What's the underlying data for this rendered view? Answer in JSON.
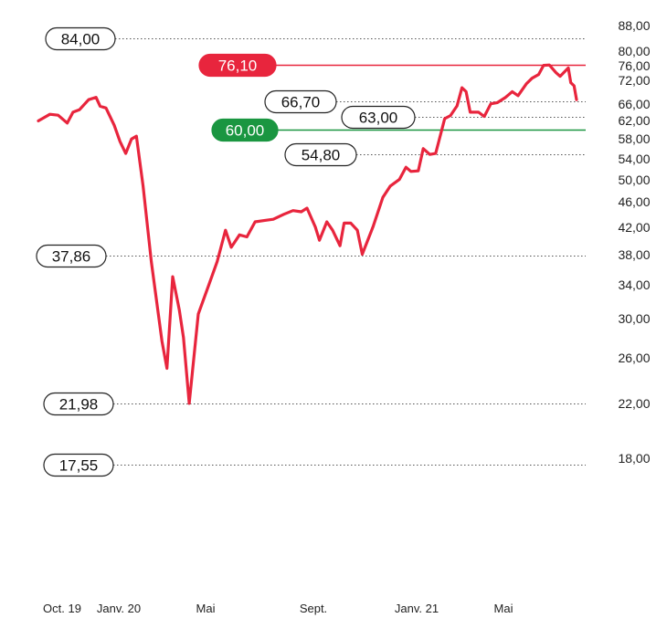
{
  "chart_data": {
    "type": "line",
    "title": "",
    "xlabel": "",
    "ylabel": "",
    "y_scale": "log",
    "ylim": [
      17,
      90
    ],
    "grid": false,
    "y_ticks": [
      {
        "value": 88,
        "label": "88,00"
      },
      {
        "value": 80,
        "label": "80,00"
      },
      {
        "value": 76,
        "label": "76,00"
      },
      {
        "value": 72,
        "label": "72,00"
      },
      {
        "value": 66,
        "label": "66,00"
      },
      {
        "value": 62,
        "label": "62,00"
      },
      {
        "value": 58,
        "label": "58,00"
      },
      {
        "value": 54,
        "label": "54,00"
      },
      {
        "value": 50,
        "label": "50,00"
      },
      {
        "value": 46,
        "label": "46,00"
      },
      {
        "value": 42,
        "label": "42,00"
      },
      {
        "value": 38,
        "label": "38,00"
      },
      {
        "value": 34,
        "label": "34,00"
      },
      {
        "value": 30,
        "label": "30,00"
      },
      {
        "value": 26,
        "label": "26,00"
      },
      {
        "value": 22,
        "label": "22,00"
      },
      {
        "value": 18,
        "label": "18,00"
      }
    ],
    "x_ticks": [
      {
        "x": "2019-10",
        "label": "Oct. 19"
      },
      {
        "x": "2020-01",
        "label": "Janv. 20"
      },
      {
        "x": "2020-05",
        "label": "Mai"
      },
      {
        "x": "2020-09",
        "label": "Sept."
      },
      {
        "x": "2021-01",
        "label": "Janv. 21"
      },
      {
        "x": "2021-05",
        "label": "Mai"
      }
    ],
    "x_range": [
      "2019-10-01",
      "2021-07-15"
    ],
    "series": [
      {
        "color": "#e8253d",
        "points": [
          [
            "2019-10-01",
            62.0
          ],
          [
            "2019-10-15",
            63.5
          ],
          [
            "2019-10-25",
            63.3
          ],
          [
            "2019-11-05",
            61.5
          ],
          [
            "2019-11-12",
            64.0
          ],
          [
            "2019-11-20",
            64.6
          ],
          [
            "2019-12-01",
            67.0
          ],
          [
            "2019-12-10",
            67.6
          ],
          [
            "2019-12-15",
            65.4
          ],
          [
            "2019-12-22",
            65.0
          ],
          [
            "2020-01-01",
            61.0
          ],
          [
            "2020-01-08",
            57.5
          ],
          [
            "2020-01-15",
            55.0
          ],
          [
            "2020-01-22",
            58.0
          ],
          [
            "2020-01-28",
            58.6
          ],
          [
            "2020-02-05",
            48.8
          ],
          [
            "2020-02-15",
            37.0
          ],
          [
            "2020-02-28",
            27.6
          ],
          [
            "2020-03-05",
            25.0
          ],
          [
            "2020-03-12",
            35.0
          ],
          [
            "2020-03-20",
            31.0
          ],
          [
            "2020-03-25",
            28.0
          ],
          [
            "2020-04-01",
            21.98
          ],
          [
            "2020-04-12",
            30.5
          ],
          [
            "2020-04-25",
            34.0
          ],
          [
            "2020-05-05",
            37.0
          ],
          [
            "2020-05-15",
            41.5
          ],
          [
            "2020-05-22",
            39.0
          ],
          [
            "2020-06-01",
            40.8
          ],
          [
            "2020-06-10",
            40.5
          ],
          [
            "2020-06-20",
            42.8
          ],
          [
            "2020-07-01",
            43.0
          ],
          [
            "2020-07-12",
            43.2
          ],
          [
            "2020-07-25",
            44.0
          ],
          [
            "2020-08-05",
            44.6
          ],
          [
            "2020-08-15",
            44.4
          ],
          [
            "2020-08-22",
            45.0
          ],
          [
            "2020-09-01",
            42.0
          ],
          [
            "2020-09-06",
            40.0
          ],
          [
            "2020-09-15",
            42.8
          ],
          [
            "2020-09-22",
            41.5
          ],
          [
            "2020-10-01",
            39.2
          ],
          [
            "2020-10-06",
            42.6
          ],
          [
            "2020-10-14",
            42.6
          ],
          [
            "2020-10-22",
            41.5
          ],
          [
            "2020-10-28",
            38.0
          ],
          [
            "2020-11-10",
            42.0
          ],
          [
            "2020-11-22",
            46.8
          ],
          [
            "2020-12-01",
            48.8
          ],
          [
            "2020-12-12",
            50.0
          ],
          [
            "2020-12-20",
            52.3
          ],
          [
            "2020-12-26",
            51.5
          ],
          [
            "2021-01-04",
            51.6
          ],
          [
            "2021-01-10",
            56.0
          ],
          [
            "2021-01-18",
            54.8
          ],
          [
            "2021-01-25",
            55.0
          ],
          [
            "2021-02-05",
            62.5
          ],
          [
            "2021-02-12",
            63.2
          ],
          [
            "2021-02-20",
            65.5
          ],
          [
            "2021-02-26",
            70.0
          ],
          [
            "2021-03-03",
            69.0
          ],
          [
            "2021-03-08",
            64.0
          ],
          [
            "2021-03-18",
            64.0
          ],
          [
            "2021-03-25",
            63.0
          ],
          [
            "2021-04-02",
            66.0
          ],
          [
            "2021-04-10",
            66.3
          ],
          [
            "2021-04-20",
            67.6
          ],
          [
            "2021-04-28",
            69.0
          ],
          [
            "2021-05-05",
            68.0
          ],
          [
            "2021-05-15",
            71.0
          ],
          [
            "2021-05-22",
            72.5
          ],
          [
            "2021-05-30",
            73.5
          ],
          [
            "2021-06-05",
            76.0
          ],
          [
            "2021-06-12",
            76.1
          ],
          [
            "2021-06-20",
            74.0
          ],
          [
            "2021-06-25",
            73.0
          ],
          [
            "2021-07-05",
            75.3
          ],
          [
            "2021-07-08",
            71.3
          ],
          [
            "2021-07-12",
            70.5
          ],
          [
            "2021-07-15",
            67.0
          ]
        ]
      }
    ],
    "levels": [
      {
        "value": 84.0,
        "label": "84,00",
        "kind": "outline",
        "line_color": "#555555",
        "line_style": "dotted",
        "line_from": "left"
      },
      {
        "value": 76.1,
        "label": "76,10",
        "kind": "filled",
        "fill": "#e8253d",
        "text_color": "#ffffff",
        "line_color": "#e8253d",
        "line_style": "solid",
        "line_from": "label"
      },
      {
        "value": 66.7,
        "label": "66,70",
        "kind": "outline",
        "line_color": "#555555",
        "line_style": "dotted",
        "line_from": "label"
      },
      {
        "value": 63.0,
        "label": "63,00",
        "kind": "outline",
        "line_color": "#555555",
        "line_style": "dotted",
        "line_from": "label"
      },
      {
        "value": 60.0,
        "label": "60,00",
        "kind": "filled",
        "fill": "#1a9641",
        "text_color": "#ffffff",
        "line_color": "#1a9641",
        "line_style": "solid",
        "line_from": "label"
      },
      {
        "value": 54.8,
        "label": "54,80",
        "kind": "outline",
        "line_color": "#555555",
        "line_style": "dotted",
        "line_from": "label"
      },
      {
        "value": 37.86,
        "label": "37,86",
        "kind": "outline",
        "line_color": "#555555",
        "line_style": "dotted",
        "line_from": "left"
      },
      {
        "value": 21.98,
        "label": "21,98",
        "kind": "outline",
        "line_color": "#555555",
        "line_style": "dotted",
        "line_from": "left"
      },
      {
        "value": 17.55,
        "label": "17,55",
        "kind": "outline",
        "line_color": "#555555",
        "line_style": "dotted",
        "line_from": "left"
      }
    ]
  }
}
